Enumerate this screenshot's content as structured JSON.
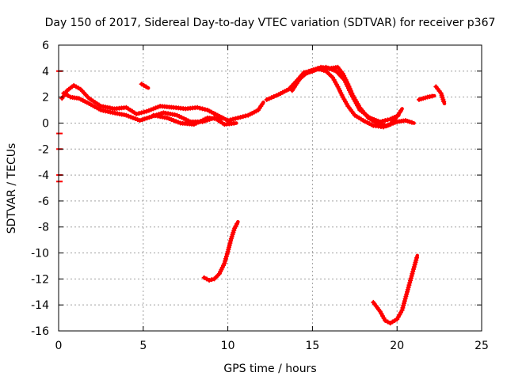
{
  "chart_data": {
    "type": "scatter",
    "title": "Day 150 of 2017, Sidereal Day-to-day VTEC variation (SDTVAR) for receiver p367",
    "xlabel": "GPS time / hours",
    "ylabel": "SDTVAR / TECUs",
    "xlim": [
      0,
      25
    ],
    "ylim": [
      -16,
      6
    ],
    "xticks": [
      0,
      5,
      10,
      15,
      20,
      25
    ],
    "xtick_labels": [
      "0",
      "5",
      "10",
      "15",
      "20",
      "25"
    ],
    "yticks": [
      -16,
      -14,
      -12,
      -10,
      -8,
      -6,
      -4,
      -2,
      0,
      2,
      4,
      6
    ],
    "ytick_labels": [
      "-16",
      "-14",
      "-12",
      "-10",
      "-8",
      "-6",
      "-4",
      "-2",
      "0",
      "2",
      "4",
      "6"
    ],
    "grid": true,
    "series_color": "#ff0000",
    "series": [
      {
        "name": "track-1",
        "points": [
          [
            0.2,
            1.9
          ],
          [
            0.5,
            2.5
          ],
          [
            0.9,
            2.9
          ],
          [
            1.3,
            2.6
          ],
          [
            1.8,
            1.9
          ],
          [
            2.5,
            1.3
          ],
          [
            3.3,
            1.1
          ],
          [
            4.0,
            1.2
          ],
          [
            4.6,
            0.7
          ],
          [
            5.2,
            0.9
          ],
          [
            6.0,
            1.3
          ],
          [
            6.8,
            1.2
          ],
          [
            7.5,
            1.1
          ],
          [
            8.2,
            1.2
          ],
          [
            8.8,
            1.0
          ],
          [
            9.4,
            0.6
          ],
          [
            10.0,
            0.2
          ],
          [
            10.6,
            0.4
          ],
          [
            11.2,
            0.6
          ],
          [
            11.8,
            1.0
          ],
          [
            12.1,
            1.6
          ]
        ]
      },
      {
        "name": "track-2",
        "points": [
          [
            0.3,
            2.3
          ],
          [
            0.7,
            2.0
          ],
          [
            1.2,
            1.9
          ],
          [
            1.8,
            1.5
          ],
          [
            2.5,
            1.0
          ],
          [
            3.2,
            0.8
          ],
          [
            4.0,
            0.6
          ],
          [
            4.8,
            0.2
          ],
          [
            5.5,
            0.5
          ],
          [
            6.2,
            0.8
          ],
          [
            7.0,
            0.6
          ],
          [
            7.8,
            0.1
          ],
          [
            8.5,
            0.1
          ],
          [
            9.2,
            0.4
          ],
          [
            9.8,
            -0.1
          ],
          [
            10.5,
            0.0
          ]
        ]
      },
      {
        "name": "track-3",
        "points": [
          [
            5.6,
            0.6
          ],
          [
            6.4,
            0.4
          ],
          [
            7.2,
            0.0
          ],
          [
            8.0,
            -0.1
          ],
          [
            8.8,
            0.4
          ],
          [
            9.6,
            0.3
          ]
        ]
      },
      {
        "name": "track-4",
        "points": [
          [
            4.9,
            3.0
          ],
          [
            5.3,
            2.7
          ]
        ]
      },
      {
        "name": "track-5",
        "points": [
          [
            12.3,
            1.8
          ],
          [
            13.0,
            2.2
          ],
          [
            13.6,
            2.6
          ],
          [
            14.1,
            3.3
          ],
          [
            14.5,
            3.9
          ],
          [
            15.0,
            4.0
          ],
          [
            15.5,
            4.3
          ],
          [
            16.0,
            4.2
          ],
          [
            16.5,
            4.3
          ],
          [
            16.8,
            3.8
          ],
          [
            17.1,
            3.0
          ],
          [
            17.4,
            2.1
          ],
          [
            17.8,
            1.2
          ],
          [
            18.3,
            0.4
          ],
          [
            18.8,
            0.0
          ],
          [
            19.4,
            -0.2
          ],
          [
            20.0,
            0.1
          ],
          [
            20.5,
            0.2
          ],
          [
            21.0,
            0.0
          ]
        ]
      },
      {
        "name": "track-6",
        "points": [
          [
            13.8,
            2.5
          ],
          [
            14.3,
            3.5
          ],
          [
            14.8,
            4.0
          ],
          [
            15.3,
            4.2
          ],
          [
            15.8,
            4.0
          ],
          [
            16.2,
            3.5
          ],
          [
            16.5,
            2.8
          ],
          [
            16.8,
            2.0
          ],
          [
            17.1,
            1.3
          ],
          [
            17.5,
            0.6
          ],
          [
            18.0,
            0.2
          ],
          [
            18.6,
            -0.2
          ],
          [
            19.2,
            -0.3
          ],
          [
            19.6,
            -0.1
          ],
          [
            20.0,
            0.5
          ],
          [
            20.3,
            1.1
          ]
        ]
      },
      {
        "name": "track-7",
        "points": [
          [
            14.0,
            3.1
          ],
          [
            14.6,
            3.8
          ],
          [
            15.2,
            4.1
          ],
          [
            15.8,
            4.3
          ],
          [
            16.4,
            4.0
          ],
          [
            16.9,
            3.3
          ],
          [
            17.3,
            2.2
          ],
          [
            17.8,
            1.0
          ],
          [
            18.4,
            0.4
          ],
          [
            19.0,
            0.1
          ],
          [
            19.6,
            0.3
          ],
          [
            20.1,
            0.6
          ]
        ]
      },
      {
        "name": "track-8",
        "points": [
          [
            21.3,
            1.8
          ],
          [
            21.8,
            2.0
          ],
          [
            22.2,
            2.1
          ]
        ]
      },
      {
        "name": "track-9",
        "points": [
          [
            22.3,
            2.8
          ],
          [
            22.6,
            2.3
          ],
          [
            22.8,
            1.5
          ]
        ]
      },
      {
        "name": "track-10",
        "points": [
          [
            8.6,
            -11.9
          ],
          [
            8.9,
            -12.1
          ],
          [
            9.2,
            -12.0
          ],
          [
            9.5,
            -11.6
          ],
          [
            9.8,
            -10.8
          ],
          [
            10.0,
            -9.9
          ],
          [
            10.2,
            -8.9
          ],
          [
            10.4,
            -8.1
          ],
          [
            10.6,
            -7.6
          ]
        ]
      },
      {
        "name": "track-11",
        "points": [
          [
            18.6,
            -13.8
          ],
          [
            19.0,
            -14.5
          ],
          [
            19.3,
            -15.2
          ],
          [
            19.6,
            -15.4
          ],
          [
            20.0,
            -15.1
          ],
          [
            20.3,
            -14.4
          ],
          [
            20.6,
            -13.0
          ],
          [
            20.9,
            -11.6
          ],
          [
            21.2,
            -10.2
          ]
        ]
      }
    ],
    "markers": [
      {
        "x": 0.05,
        "y": 4.0
      },
      {
        "x": 0.05,
        "y": -0.8
      },
      {
        "x": 0.05,
        "y": -2.0
      },
      {
        "x": 0.05,
        "y": -4.0
      },
      {
        "x": 0.05,
        "y": -4.5
      }
    ]
  }
}
